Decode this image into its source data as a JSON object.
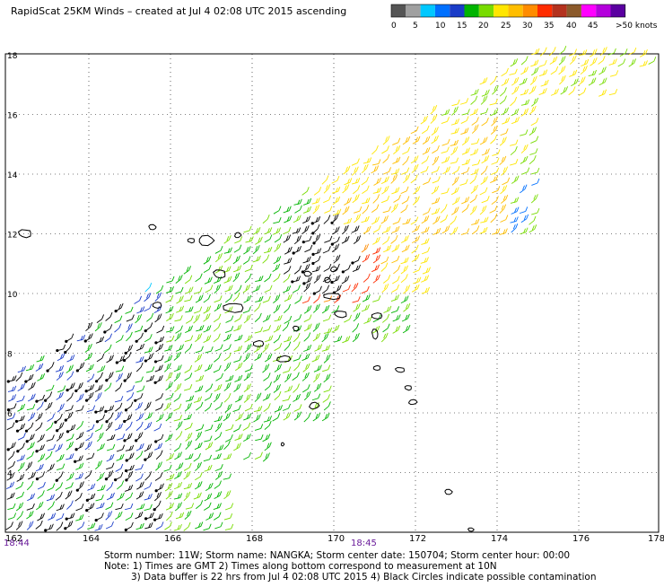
{
  "title": "RapidScat 25KM Winds – created at Jul  4 02:08 UTC 2015 ascending",
  "legend": {
    "colors": [
      "#555555",
      "#a0a0a0",
      "#00c8ff",
      "#0070ff",
      "#1a3cc8",
      "#00b400",
      "#78dc00",
      "#ffe600",
      "#ffbe00",
      "#ff8c00",
      "#ff2c00",
      "#b4321e",
      "#8b5a2b",
      "#ff00ff",
      "#b400dc",
      "#5a00a0"
    ],
    "labels": [
      "0",
      "5",
      "10",
      "15",
      "20",
      "25",
      "30",
      "35",
      "40",
      "45",
      ">50 knots"
    ]
  },
  "axes": {
    "x_ticks": [
      "162",
      "164",
      "166",
      "168",
      "170",
      "172",
      "174",
      "176",
      "178"
    ],
    "y_ticks": [
      "18",
      "16",
      "14",
      "12",
      "10",
      "8",
      "6",
      "4"
    ]
  },
  "time_labels": {
    "left": "18:44",
    "center": "18:45"
  },
  "footer": {
    "line1": "Storm number: 11W;  Storm name: NANGKA;  Storm center date: 150704;  Storm center hour: 00:00",
    "line2": "Note: 1) Times are GMT  2) Times along bottom correspond to measurement at 10N",
    "line3": "3) Data buffer is 22 hrs from Jul  4 02:08 UTC 2015  4) Black Circles indicate possible contamination"
  }
}
